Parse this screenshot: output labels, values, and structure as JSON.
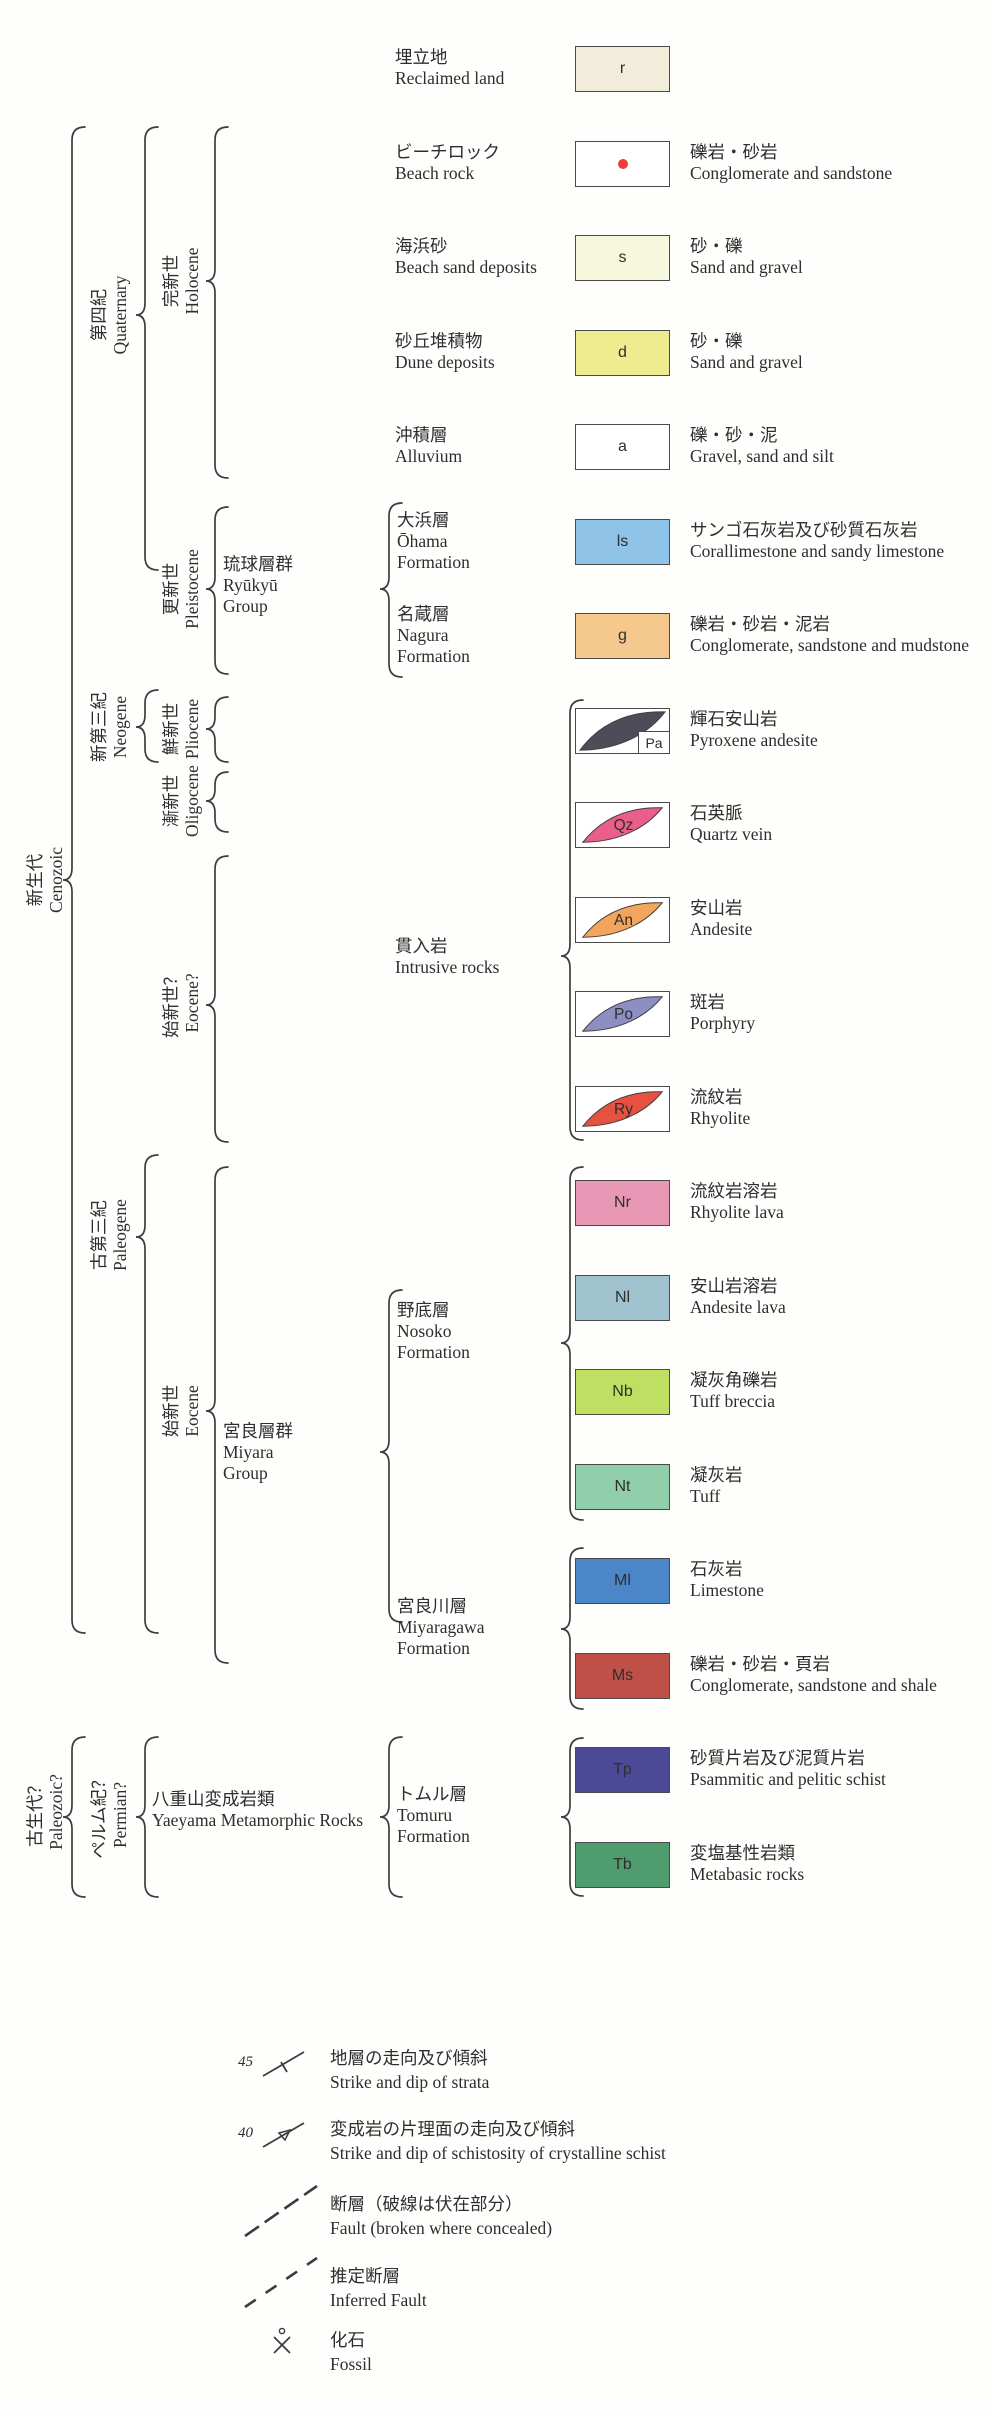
{
  "legend": {
    "rows": [
      {
        "id": "reclaimed",
        "code": "r",
        "kind": "letter",
        "color": "#f2edda",
        "name_ja": "埋立地",
        "name_en": "Reclaimed land",
        "desc_ja": "",
        "desc_en": ""
      },
      {
        "id": "beachrock",
        "code": "",
        "kind": "dot",
        "color": "#ffffff",
        "dot_color": "#e8403a",
        "name_ja": "ビーチロック",
        "name_en": "Beach rock",
        "desc_ja": "礫岩・砂岩",
        "desc_en": "Conglomerate and sandstone"
      },
      {
        "id": "beachsand",
        "code": "s",
        "kind": "letter",
        "color": "#f6f7dd",
        "name_ja": "海浜砂",
        "name_en": "Beach sand deposits",
        "desc_ja": "砂・礫",
        "desc_en": "Sand and gravel"
      },
      {
        "id": "dune",
        "code": "d",
        "kind": "letter",
        "color": "#eeec8e",
        "name_ja": "砂丘堆積物",
        "name_en": "Dune deposits",
        "desc_ja": "砂・礫",
        "desc_en": "Sand and gravel"
      },
      {
        "id": "alluvium",
        "code": "a",
        "kind": "letter",
        "color": "#ffffff",
        "name_ja": "沖積層",
        "name_en": "Alluvium",
        "desc_ja": "礫・砂・泥",
        "desc_en": "Gravel, sand and silt"
      },
      {
        "id": "ls",
        "code": "ls",
        "kind": "letter",
        "color": "#8fc3e8",
        "name_ja": "",
        "name_en": "",
        "desc_ja": "サンゴ石灰岩及び砂質石灰岩",
        "desc_en": "Corallimestone and sandy limestone"
      },
      {
        "id": "g",
        "code": "g",
        "kind": "letter",
        "color": "#f5c98e",
        "name_ja": "",
        "name_en": "",
        "desc_ja": "礫岩・砂岩・泥岩",
        "desc_en": "Conglomerate, sandstone and mudstone"
      },
      {
        "id": "Pa",
        "code": "Pa",
        "kind": "lens-corner",
        "color": "#4d4c58",
        "name_ja": "",
        "name_en": "",
        "desc_ja": "輝石安山岩",
        "desc_en": "Pyroxene andesite"
      },
      {
        "id": "Qz",
        "code": "Qz",
        "kind": "lens",
        "color": "#e95f8a",
        "name_ja": "",
        "name_en": "",
        "desc_ja": "石英脈",
        "desc_en": "Quartz vein"
      },
      {
        "id": "An",
        "code": "An",
        "kind": "lens",
        "color": "#f3a55e",
        "name_ja": "",
        "name_en": "",
        "desc_ja": "安山岩",
        "desc_en": "Andesite"
      },
      {
        "id": "Po",
        "code": "Po",
        "kind": "lens",
        "color": "#8d8fc2",
        "name_ja": "",
        "name_en": "",
        "desc_ja": "斑岩",
        "desc_en": "Porphyry"
      },
      {
        "id": "Ry",
        "code": "Ry",
        "kind": "lens",
        "color": "#e65140",
        "name_ja": "",
        "name_en": "",
        "desc_ja": "流紋岩",
        "desc_en": "Rhyolite"
      },
      {
        "id": "Nr",
        "code": "Nr",
        "kind": "letter",
        "color": "#e898b4",
        "name_ja": "",
        "name_en": "",
        "desc_ja": "流紋岩溶岩",
        "desc_en": "Rhyolite lava"
      },
      {
        "id": "Nl",
        "code": "Nl",
        "kind": "letter",
        "color": "#9fc2ce",
        "name_ja": "",
        "name_en": "",
        "desc_ja": "安山岩溶岩",
        "desc_en": "Andesite lava"
      },
      {
        "id": "Nb",
        "code": "Nb",
        "kind": "letter",
        "color": "#bfdf62",
        "name_ja": "",
        "name_en": "",
        "desc_ja": "凝灰角礫岩",
        "desc_en": "Tuff breccia"
      },
      {
        "id": "Nt",
        "code": "Nt",
        "kind": "letter",
        "color": "#90cfa9",
        "name_ja": "",
        "name_en": "",
        "desc_ja": "凝灰岩",
        "desc_en": "Tuff"
      },
      {
        "id": "Ml",
        "code": "Ml",
        "kind": "letter",
        "color": "#4a86c8",
        "name_ja": "",
        "name_en": "",
        "desc_ja": "石灰岩",
        "desc_en": "Limestone"
      },
      {
        "id": "Ms",
        "code": "Ms",
        "kind": "letter",
        "color": "#bf5048",
        "name_ja": "",
        "name_en": "",
        "desc_ja": "礫岩・砂岩・頁岩",
        "desc_en": "Conglomerate, sandstone and shale"
      },
      {
        "id": "Tp",
        "code": "Tp",
        "kind": "letter",
        "color": "#4c4a96",
        "name_ja": "",
        "name_en": "",
        "desc_ja": "砂質片岩及び泥質片岩",
        "desc_en": "Psammitic and pelitic schist"
      },
      {
        "id": "Tb",
        "code": "Tb",
        "kind": "letter",
        "color": "#4f9c6e",
        "name_ja": "",
        "name_en": "",
        "desc_ja": "変塩基性岩類",
        "desc_en": "Metabasic rocks"
      }
    ],
    "formations": {
      "ohama": {
        "ja": "大浜層",
        "en1": "Ōhama",
        "en2": "Formation"
      },
      "nagura": {
        "ja": "名蔵層",
        "en1": "Nagura",
        "en2": "Formation"
      },
      "nosoko": {
        "ja": "野底層",
        "en1": "Nosoko",
        "en2": "Formation"
      },
      "miyaragawa": {
        "ja": "宮良川層",
        "en1": "Miyaragawa",
        "en2": "Formation"
      },
      "tomuru": {
        "ja": "トムル層",
        "en1": "Tomuru",
        "en2": "Formation"
      }
    },
    "groups": {
      "ryukyu": {
        "ja": "琉球層群",
        "en1": "Ryūkyū",
        "en2": "Group"
      },
      "miyara": {
        "ja": "宮良層群",
        "en1": "Miyara",
        "en2": "Group"
      },
      "yaeyama": {
        "ja": "八重山変成岩類",
        "en1": "Yaeyama Metamorphic Rocks",
        "en2": ""
      },
      "intrusive": {
        "ja": "貫入岩",
        "en1": "Intrusive  rocks",
        "en2": ""
      }
    },
    "eras": {
      "cenozoic": {
        "ja": "新生代",
        "en": "Cenozoic"
      },
      "paleozoic": {
        "ja": "古生代？",
        "en": "Paleozoic?"
      },
      "quaternary": {
        "ja": "第四紀",
        "en": "Quaternary"
      },
      "neogene": {
        "ja": "新第三紀",
        "en": "Neogene"
      },
      "paleogene": {
        "ja": "古第三紀",
        "en": "Paleogene"
      },
      "permian": {
        "ja": "ペルム紀？",
        "en": "Permian?"
      },
      "holocene": {
        "ja": "完新世",
        "en": "Holocene"
      },
      "pleistocene": {
        "ja": "更新世",
        "en": "Pleistocene"
      },
      "pliocene": {
        "ja": "鮮新世",
        "en": "Pliocene"
      },
      "oligocene": {
        "ja": "漸新世",
        "en": "Oligocene"
      },
      "eocene_q": {
        "ja": "始新世？",
        "en": "Eocene?"
      },
      "eocene": {
        "ja": "始新世",
        "en": "Eocene"
      }
    },
    "map_symbols": [
      {
        "id": "strike-dip",
        "value": "45",
        "ja": "地層の走向及び傾斜",
        "en": "Strike and dip of strata"
      },
      {
        "id": "schistosity-strike-dip",
        "value": "40",
        "ja": "変成岩の片理面の走向及び傾斜",
        "en": "Strike and dip of schistosity of crystalline schist"
      },
      {
        "id": "fault",
        "value": "",
        "ja": "断層（破線は伏在部分）",
        "en": "Fault (broken where concealed)"
      },
      {
        "id": "inferred-fault",
        "value": "",
        "ja": "推定断層",
        "en": "Inferred Fault"
      },
      {
        "id": "fossil",
        "value": "",
        "ja": "化石",
        "en": "Fossil"
      }
    ],
    "line_color": "#3d3d3d"
  }
}
